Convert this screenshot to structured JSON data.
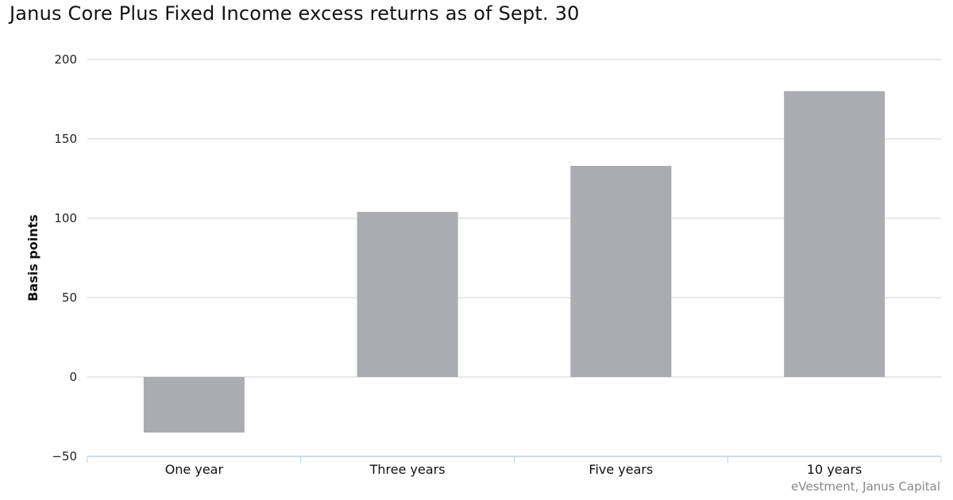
{
  "chart_data": {
    "type": "bar",
    "title": "Janus Core Plus Fixed Income excess returns as of Sept. 30",
    "xlabel": "",
    "ylabel": "Basis points",
    "categories": [
      "One year",
      "Three years",
      "Five years",
      "10 years"
    ],
    "values": [
      -35,
      104,
      133,
      180
    ],
    "ylim": [
      -50,
      200
    ],
    "yticks": [
      -50,
      0,
      50,
      100,
      150,
      200
    ],
    "grid": true,
    "legend": "none",
    "bar_color": "#abacaf",
    "source": "eVestment, Janus Capital"
  }
}
